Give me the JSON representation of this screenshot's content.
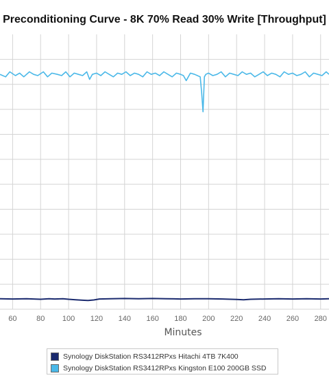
{
  "chart_data": {
    "type": "line",
    "title": "Preconditioning Curve - 8K 70% Read 30% Write [Throughput]",
    "xlabel": "Minutes",
    "ylabel": "",
    "x_ticks": [
      60,
      80,
      100,
      120,
      140,
      160,
      180,
      200,
      220,
      240,
      260,
      280
    ],
    "xlim": [
      51,
      286
    ],
    "ylim": [
      0,
      11
    ],
    "y_grid_lines": [
      0,
      1,
      2,
      3,
      4,
      5,
      6,
      7,
      8,
      9,
      10
    ],
    "grid": true,
    "legend_position": "bottom",
    "series": [
      {
        "name": "Synology DiskStation RS3412RPxs Hitachi 4TB 7K400",
        "color": "#1a2a6e",
        "x": [
          51,
          60,
          70,
          80,
          86,
          90,
          96,
          100,
          105,
          110,
          114,
          118,
          122,
          130,
          140,
          150,
          160,
          170,
          180,
          190,
          200,
          210,
          220,
          225,
          230,
          240,
          250,
          260,
          270,
          280,
          286
        ],
        "y": [
          0.42,
          0.41,
          0.42,
          0.4,
          0.42,
          0.41,
          0.42,
          0.4,
          0.38,
          0.36,
          0.35,
          0.37,
          0.41,
          0.42,
          0.43,
          0.42,
          0.43,
          0.42,
          0.41,
          0.42,
          0.42,
          0.41,
          0.39,
          0.38,
          0.4,
          0.41,
          0.42,
          0.41,
          0.42,
          0.41,
          0.42
        ]
      },
      {
        "name": "Synology DiskStation RS3412RPxs Kingston E100 200GB SSD",
        "color": "#4ab8e8",
        "x": [
          51,
          55,
          58,
          62,
          65,
          68,
          72,
          75,
          78,
          82,
          85,
          88,
          92,
          95,
          98,
          101,
          104,
          107,
          110,
          113,
          115,
          117,
          120,
          123,
          126,
          129,
          132,
          135,
          138,
          141,
          144,
          147,
          150,
          153,
          156,
          159,
          162,
          165,
          168,
          171,
          174,
          177,
          180,
          182,
          184,
          187,
          190,
          192,
          194,
          195,
          196,
          197,
          198,
          200,
          203,
          206,
          209,
          212,
          215,
          218,
          221,
          224,
          227,
          230,
          233,
          236,
          239,
          242,
          245,
          248,
          251,
          254,
          257,
          260,
          263,
          266,
          269,
          272,
          275,
          278,
          281,
          284,
          286
        ],
        "y": [
          9.4,
          9.3,
          9.5,
          9.35,
          9.45,
          9.3,
          9.5,
          9.4,
          9.35,
          9.5,
          9.3,
          9.45,
          9.4,
          9.35,
          9.5,
          9.3,
          9.45,
          9.4,
          9.35,
          9.5,
          9.2,
          9.4,
          9.45,
          9.35,
          9.5,
          9.4,
          9.3,
          9.45,
          9.4,
          9.5,
          9.35,
          9.45,
          9.4,
          9.3,
          9.5,
          9.4,
          9.45,
          9.35,
          9.5,
          9.4,
          9.3,
          9.45,
          9.4,
          9.35,
          9.15,
          9.45,
          9.4,
          9.35,
          9.3,
          8.7,
          7.9,
          9.3,
          9.4,
          9.45,
          9.35,
          9.4,
          9.5,
          9.3,
          9.45,
          9.4,
          9.35,
          9.5,
          9.4,
          9.45,
          9.3,
          9.4,
          9.5,
          9.35,
          9.45,
          9.4,
          9.3,
          9.5,
          9.4,
          9.45,
          9.35,
          9.4,
          9.5,
          9.3,
          9.45,
          9.4,
          9.35,
          9.5,
          9.4
        ]
      }
    ]
  }
}
